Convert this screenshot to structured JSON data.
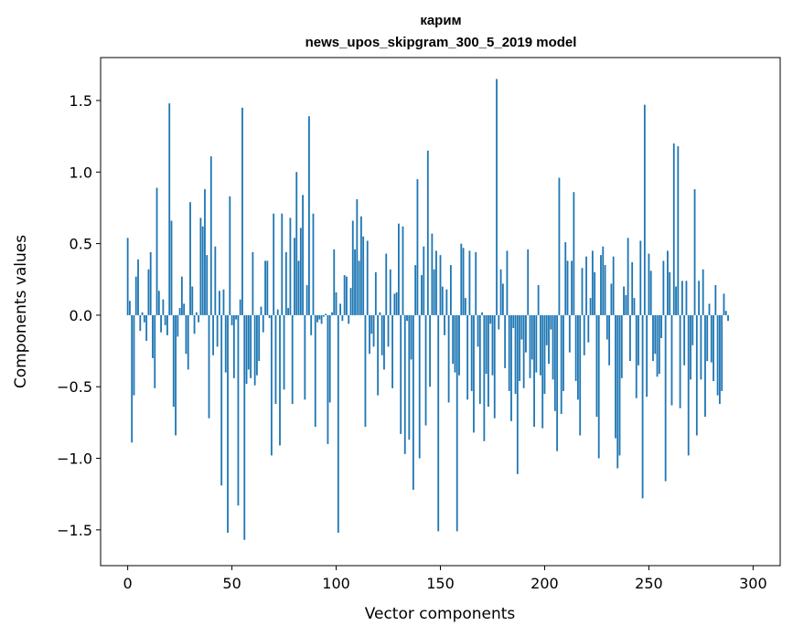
{
  "chart_data": {
    "type": "bar",
    "title": "карим",
    "subtitle": "news_upos_skipgram_300_5_2019 model",
    "xlabel": "Vector components",
    "ylabel": "Components values",
    "xlim": [
      -13,
      313
    ],
    "ylim": [
      -1.75,
      1.8
    ],
    "xticks": [
      0,
      50,
      100,
      150,
      200,
      250,
      300
    ],
    "yticks": [
      -1.5,
      -1.0,
      -0.5,
      0.0,
      0.5,
      1.0,
      1.5
    ],
    "ytick_labels": [
      "−1.5",
      "−1.0",
      "−0.5",
      "0.0",
      "0.5",
      "1.0",
      "1.5"
    ],
    "color": "#1f77b4",
    "values": [
      0.54,
      0.1,
      -0.89,
      -0.56,
      0.27,
      0.39,
      -0.11,
      0.02,
      -0.05,
      -0.18,
      0.32,
      0.44,
      -0.3,
      -0.51,
      0.89,
      0.17,
      -0.12,
      0.11,
      -0.07,
      -0.14,
      1.48,
      0.66,
      -0.64,
      -0.84,
      -0.15,
      0.05,
      0.27,
      0.08,
      -0.27,
      -0.38,
      0.79,
      0.2,
      -0.13,
      0.02,
      -0.05,
      0.68,
      0.62,
      0.88,
      0.42,
      -0.72,
      1.11,
      -0.28,
      0.48,
      -0.22,
      0.17,
      -1.19,
      0.18,
      -0.4,
      -1.52,
      0.83,
      -0.07,
      -0.44,
      -0.03,
      -1.33,
      0.11,
      1.45,
      -1.57,
      -0.48,
      -0.38,
      -0.44,
      0.44,
      -0.49,
      -0.42,
      -0.32,
      0.06,
      -0.12,
      0.38,
      0.38,
      -0.02,
      -0.98,
      0.71,
      -0.62,
      0.04,
      -0.91,
      0.71,
      -0.52,
      0.44,
      0.05,
      0.68,
      -0.62,
      0.54,
      1.0,
      0.38,
      0.61,
      0.84,
      -0.59,
      0.21,
      1.39,
      -0.14,
      0.71,
      -0.78,
      -0.05,
      -0.03,
      -0.06,
      -0.01,
      0.01,
      -0.9,
      -0.61,
      0.02,
      0.46,
      0.16,
      -1.52,
      0.08,
      -0.04,
      0.28,
      0.27,
      -0.06,
      0.19,
      0.66,
      0.46,
      0.81,
      0.38,
      0.69,
      0.55,
      -0.78,
      0.52,
      -0.27,
      -0.13,
      -0.22,
      0.3,
      -0.56,
      0.02,
      -0.28,
      -0.38,
      0.43,
      -0.22,
      0.32,
      -0.51,
      0.15,
      0.16,
      0.64,
      -0.83,
      0.62,
      -0.97,
      -0.04,
      -0.87,
      -0.31,
      -1.22,
      0.35,
      0.95,
      -1.0,
      0.28,
      0.48,
      -0.77,
      1.15,
      -0.5,
      0.57,
      0.32,
      0.45,
      -1.51,
      0.42,
      0.2,
      -0.14,
      0.18,
      -0.61,
      0.35,
      -0.34,
      -0.4,
      -1.51,
      -0.42,
      0.5,
      0.47,
      0.12,
      -0.59,
      0.45,
      -0.53,
      -0.82,
      0.44,
      -0.22,
      -0.62,
      0.02,
      -0.88,
      -0.41,
      -0.64,
      -0.06,
      -0.42,
      -0.72,
      1.65,
      -0.1,
      0.32,
      0.22,
      -0.37,
      0.45,
      -0.53,
      -0.74,
      -0.09,
      -0.55,
      -1.11,
      -0.46,
      -0.17,
      -0.51,
      -0.26,
      0.46,
      -0.44,
      -0.31,
      -0.78,
      -0.4,
      0.21,
      -0.42,
      -0.79,
      -0.55,
      -0.21,
      -0.34,
      -0.1,
      -0.45,
      -0.67,
      -0.95,
      0.96,
      -0.69,
      -0.53,
      0.51,
      0.38,
      -0.26,
      0.38,
      0.86,
      -0.46,
      -0.59,
      -0.84,
      0.33,
      -0.28,
      0.41,
      -0.19,
      0.12,
      0.45,
      0.3,
      -0.71,
      -1.0,
      0.42,
      0.48,
      0.35,
      -0.17,
      -0.35,
      0.22,
      0.41,
      -0.86,
      -1.07,
      -0.98,
      -0.44,
      0.2,
      0.14,
      0.54,
      -0.32,
      0.37,
      0.12,
      -0.58,
      -0.35,
      0.52,
      -1.28,
      1.47,
      -0.57,
      0.43,
      0.31,
      -0.32,
      -0.27,
      -0.43,
      -0.41,
      -0.16,
      0.38,
      -1.16,
      0.45,
      0.3,
      -0.63,
      1.2,
      0.2,
      1.18,
      -0.65,
      0.24,
      -0.35,
      0.24,
      -0.98,
      -0.45,
      -0.21,
      0.88,
      -0.84,
      0.24,
      -0.45,
      0.32,
      -0.71,
      -0.32,
      0.08,
      -0.33,
      -0.46,
      0.21,
      -0.56,
      -0.62,
      -0.53,
      0.15,
      0.03,
      -0.04
    ]
  }
}
